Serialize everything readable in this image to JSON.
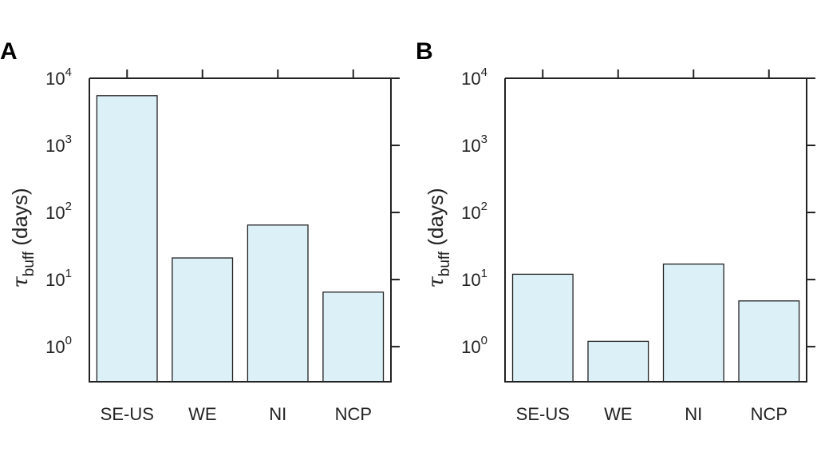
{
  "chart_data": [
    {
      "panel": "A",
      "type": "bar",
      "categories": [
        "SE-US",
        "WE",
        "NI",
        "NCP"
      ],
      "values": [
        5500,
        21,
        65,
        6.5
      ],
      "ylabel_symbol": "τ",
      "ylabel_sub": "buff",
      "ylabel_unit": "(days)",
      "yscale": "log",
      "ylim": [
        0.3,
        10000
      ],
      "yticks": [
        {
          "base": "10",
          "exp": "0",
          "value": 1
        },
        {
          "base": "10",
          "exp": "1",
          "value": 10
        },
        {
          "base": "10",
          "exp": "2",
          "value": 100
        },
        {
          "base": "10",
          "exp": "3",
          "value": 1000
        },
        {
          "base": "10",
          "exp": "4",
          "value": 10000
        }
      ],
      "grid": false
    },
    {
      "panel": "B",
      "type": "bar",
      "categories": [
        "SE-US",
        "WE",
        "NI",
        "NCP"
      ],
      "values": [
        12,
        1.2,
        17,
        4.8
      ],
      "ylabel_symbol": "τ",
      "ylabel_sub": "buff",
      "ylabel_unit": "(days)",
      "yscale": "log",
      "ylim": [
        0.3,
        10000
      ],
      "yticks": [
        {
          "base": "10",
          "exp": "0",
          "value": 1
        },
        {
          "base": "10",
          "exp": "1",
          "value": 10
        },
        {
          "base": "10",
          "exp": "2",
          "value": 100
        },
        {
          "base": "10",
          "exp": "3",
          "value": 1000
        },
        {
          "base": "10",
          "exp": "4",
          "value": 10000
        }
      ],
      "grid": false
    }
  ],
  "style": {
    "bar_fill": "#dcf0f8",
    "bar_stroke": "#222222",
    "axis_color": "#222222"
  }
}
